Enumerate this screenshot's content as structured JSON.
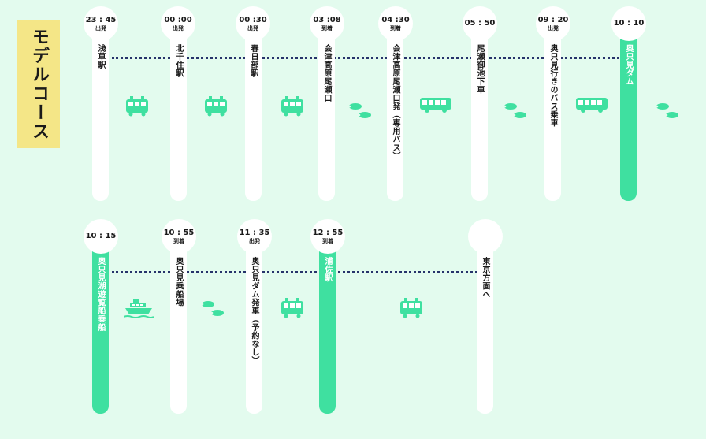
{
  "title": "モデルコース",
  "colors": {
    "background": "#e3fbee",
    "accent": "#3fe0a0",
    "title_bg": "#f4e687",
    "dots": "#27336b"
  },
  "row1": {
    "stops": [
      {
        "time": "23 : 45",
        "status": "出発",
        "name": "浅草駅",
        "highlight": false
      },
      {
        "time": "00 :00",
        "status": "出発",
        "name": "北千住駅",
        "highlight": false
      },
      {
        "time": "00 :30",
        "status": "出発",
        "name": "春日部駅",
        "highlight": false
      },
      {
        "time": "03 :08",
        "status": "到着",
        "name": "会津高原尾瀬口",
        "highlight": false
      },
      {
        "time": "04 :30",
        "status": "到着",
        "name": "会津高原尾瀬口発（専用バス）",
        "highlight": false
      },
      {
        "time": "05 : 50",
        "status": "",
        "name": "尾瀬御池下車",
        "highlight": false
      },
      {
        "time": "09 : 20",
        "status": "出発",
        "name": "奥只見行きのバス乗車",
        "highlight": false
      },
      {
        "time": "10 : 10",
        "status": "",
        "name": "奥只見ダム",
        "highlight": true
      }
    ],
    "icons": [
      "train-icon",
      "train-icon",
      "train-icon",
      "footprints-icon",
      "bus-icon",
      "footprints-icon",
      "bus-icon",
      "footprints-icon"
    ]
  },
  "row2": {
    "stops": [
      {
        "time": "10 : 15",
        "status": "",
        "name": "奥只見湖遊覧船乗船",
        "highlight": true
      },
      {
        "time": "10 : 55",
        "status": "到着",
        "name": "奥只見乗船場",
        "highlight": false
      },
      {
        "time": "11 : 35",
        "status": "出発",
        "name": "奥只見ダム発車（予約なし）",
        "highlight": false
      },
      {
        "time": "12 : 55",
        "status": "到着",
        "name": "浦佐駅",
        "highlight": true
      },
      {
        "time": "",
        "status": "",
        "name": "東京方面へ",
        "highlight": false
      }
    ],
    "icons": [
      "ship-icon",
      "footprints-icon",
      "train-icon",
      "train-icon"
    ]
  }
}
